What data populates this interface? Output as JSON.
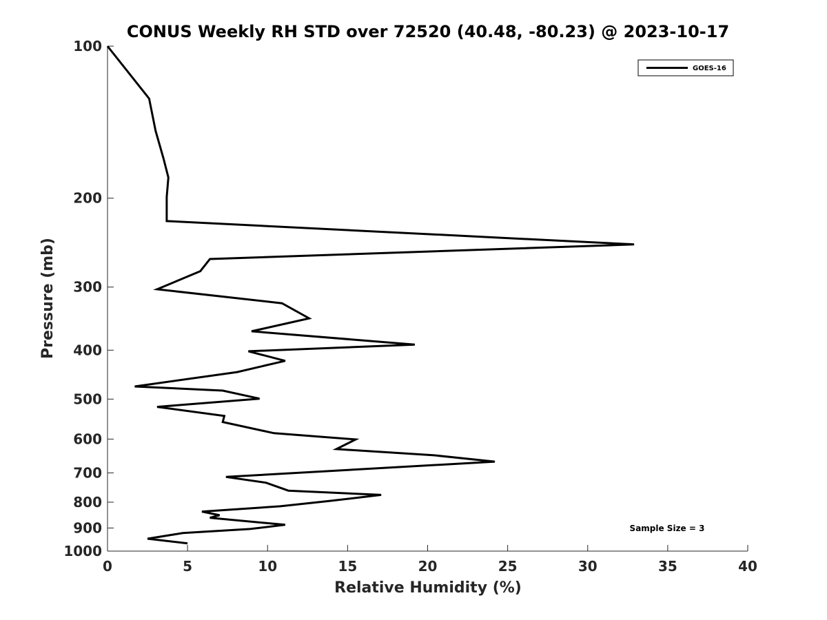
{
  "chart_data": {
    "type": "line",
    "title": "CONUS Weekly RH STD over 72520 (40.48, -80.23) @ 2023-10-17",
    "xlabel": "Relative Humidity (%)",
    "ylabel": "Pressure (mb)",
    "xlim": [
      0,
      40
    ],
    "ylim": [
      100,
      1000
    ],
    "y_scale": "log",
    "y_reversed": true,
    "grid": false,
    "legend_placement": "top-right",
    "x_ticks": [
      0,
      5,
      10,
      15,
      20,
      25,
      30,
      35,
      40
    ],
    "x_tick_labels": [
      "0",
      "5",
      "10",
      "15",
      "20",
      "25",
      "30",
      "35",
      "40"
    ],
    "y_ticks": [
      100,
      200,
      300,
      400,
      500,
      600,
      700,
      800,
      900,
      1000
    ],
    "y_tick_labels": [
      "100",
      "200",
      "300",
      "400",
      "500",
      "600",
      "700",
      "800",
      "900",
      "1000"
    ],
    "annotation": "Sample Size = 3",
    "series": [
      {
        "name": "GOES-16",
        "color": "#000000",
        "points": [
          [
            0.0,
            100
          ],
          [
            2.6,
            127
          ],
          [
            3.0,
            147
          ],
          [
            3.5,
            167
          ],
          [
            3.8,
            182
          ],
          [
            3.7,
            199
          ],
          [
            3.7,
            222
          ],
          [
            32.9,
            247
          ],
          [
            6.4,
            264
          ],
          [
            5.8,
            279
          ],
          [
            3.1,
            303
          ],
          [
            10.9,
            323
          ],
          [
            12.6,
            346
          ],
          [
            9.0,
            367
          ],
          [
            19.2,
            390
          ],
          [
            8.8,
            402
          ],
          [
            11.1,
            420
          ],
          [
            8.1,
            442
          ],
          [
            1.7,
            472
          ],
          [
            7.2,
            481
          ],
          [
            9.5,
            499
          ],
          [
            3.1,
            518
          ],
          [
            7.3,
            540
          ],
          [
            7.2,
            555
          ],
          [
            10.4,
            584
          ],
          [
            15.5,
            601
          ],
          [
            14.3,
            628
          ],
          [
            20.4,
            646
          ],
          [
            24.2,
            665
          ],
          [
            7.4,
            713
          ],
          [
            9.9,
            732
          ],
          [
            11.3,
            759
          ],
          [
            17.1,
            774
          ],
          [
            13.8,
            796
          ],
          [
            10.8,
            815
          ],
          [
            5.9,
            835
          ],
          [
            7.0,
            849
          ],
          [
            6.4,
            859
          ],
          [
            11.1,
            887
          ],
          [
            8.9,
            904
          ],
          [
            4.7,
            921
          ],
          [
            2.5,
            945
          ],
          [
            5.0,
            965
          ]
        ]
      }
    ]
  }
}
